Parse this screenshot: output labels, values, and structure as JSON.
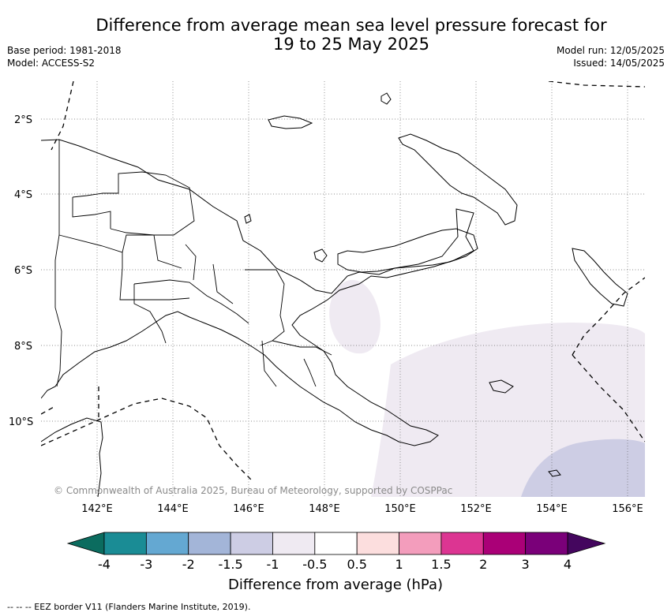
{
  "header": {
    "title_line1": "Difference from average mean sea level pressure forecast for",
    "title_line2": "19 to 25 May 2025",
    "base_period": "Base period: 1981-2018",
    "model": "Model: ACCESS-S2",
    "model_run": "Model run: 12/05/2025",
    "issued": "Issued: 14/05/2025"
  },
  "map": {
    "lat_labels": [
      "2°S",
      "4°S",
      "6°S",
      "8°S",
      "10°S"
    ],
    "lon_labels": [
      "142°E",
      "144°E",
      "146°E",
      "148°E",
      "150°E",
      "152°E",
      "154°E",
      "156°E"
    ],
    "copyright": "© Commonwealth of Australia 2025, Bureau of Meteorology, supported by COSPPac",
    "gridlines": true
  },
  "colorbar": {
    "ticks": [
      "-4",
      "-3",
      "-2",
      "-1.5",
      "-1",
      "-0.5",
      "0.5",
      "1",
      "1.5",
      "2",
      "3",
      "4"
    ],
    "colors": [
      "#1a8c95",
      "#64a8d2",
      "#a3b5d8",
      "#cdcde4",
      "#efeaf2",
      "#ffffff",
      "#fcdede",
      "#f39dbc",
      "#dc3592",
      "#aa0077",
      "#7a0079"
    ],
    "low_extend_color": "#0b6c5f",
    "high_extend_color": "#44065e",
    "label": "Difference from average (hPa)"
  },
  "footnote": "--  --  -- EEZ border V11 (Flanders Marine Institute, 2019)."
}
